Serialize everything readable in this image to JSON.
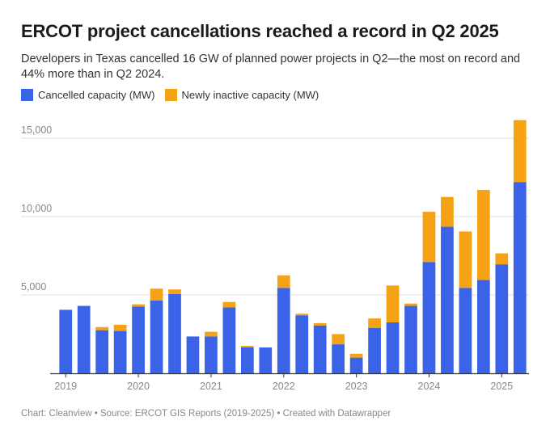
{
  "header": {
    "title": "ERCOT project cancellations reached a record in Q2 2025",
    "subtitle": "Developers in Texas cancelled 16 GW of planned power projects in Q2—the most on record and 44% more than in Q2 2024."
  },
  "legend": {
    "items": [
      {
        "label": "Cancelled capacity (MW)",
        "color": "#3a63e8"
      },
      {
        "label": "Newly inactive capacity (MW)",
        "color": "#f5a214"
      }
    ]
  },
  "footer": {
    "text": "Chart: Cleanview • Source: ERCOT GIS Reports (2019-2025) • Created with Datawrapper"
  },
  "chart_data": {
    "type": "bar",
    "stacked": true,
    "categories": [
      "2019 Q1",
      "2019 Q2",
      "2019 Q3",
      "2019 Q4",
      "2020 Q1",
      "2020 Q2",
      "2020 Q3",
      "2020 Q4",
      "2021 Q1",
      "2021 Q2",
      "2021 Q3",
      "2021 Q4",
      "2022 Q1",
      "2022 Q2",
      "2022 Q3",
      "2022 Q4",
      "2023 Q1",
      "2023 Q2",
      "2023 Q3",
      "2023 Q4",
      "2024 Q1",
      "2024 Q2",
      "2024 Q3",
      "2024 Q4",
      "2025 Q1",
      "2025 Q2"
    ],
    "series": [
      {
        "name": "Cancelled capacity (MW)",
        "color": "#3a63e8",
        "values": [
          4050,
          4300,
          2750,
          2700,
          4250,
          4650,
          5050,
          2350,
          2350,
          4200,
          1650,
          1650,
          5450,
          3700,
          3050,
          1850,
          1000,
          2900,
          3250,
          4300,
          7100,
          9350,
          5450,
          5950,
          6950,
          12200
        ]
      },
      {
        "name": "Newly inactive capacity (MW)",
        "color": "#f5a214",
        "values": [
          0,
          0,
          200,
          400,
          150,
          750,
          300,
          0,
          300,
          350,
          100,
          0,
          800,
          100,
          150,
          650,
          250,
          600,
          2350,
          150,
          3200,
          1900,
          3600,
          5750,
          700,
          3950
        ]
      }
    ],
    "x_tick_labels": [
      {
        "label": "2019",
        "index": 0
      },
      {
        "label": "2020",
        "index": 4
      },
      {
        "label": "2021",
        "index": 8
      },
      {
        "label": "2022",
        "index": 12
      },
      {
        "label": "2023",
        "index": 16
      },
      {
        "label": "2024",
        "index": 20
      },
      {
        "label": "2025",
        "index": 24
      }
    ],
    "y_ticks": [
      5000,
      10000,
      15000
    ],
    "y_tick_labels": [
      "5,000",
      "10,000",
      "15,000"
    ],
    "ylim": [
      0,
      16800
    ],
    "grid": true,
    "legend_position": "top-left"
  }
}
